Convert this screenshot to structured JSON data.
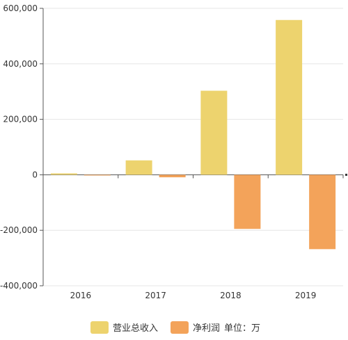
{
  "chart_data": {
    "type": "bar",
    "categories": [
      "2016",
      "2017",
      "2018",
      "2019"
    ],
    "series": [
      {
        "name": "营业总收入",
        "color": "#EDD36E",
        "values": [
          5000,
          52000,
          303000,
          558000
        ]
      },
      {
        "name": "净利润",
        "color": "#F3A35A",
        "values": [
          -1000,
          -9000,
          -195000,
          -268000
        ]
      }
    ],
    "ylim": [
      -400000,
      600000
    ],
    "yticks": [
      -400000,
      -200000,
      0,
      200000,
      400000,
      600000
    ],
    "ytick_labels": [
      "-400,000",
      "-200,000",
      "0",
      "200,000",
      "400,000",
      "600,000"
    ],
    "grid": "horizontal",
    "legend_position": "bottom-center",
    "unit_note": "单位：万"
  }
}
